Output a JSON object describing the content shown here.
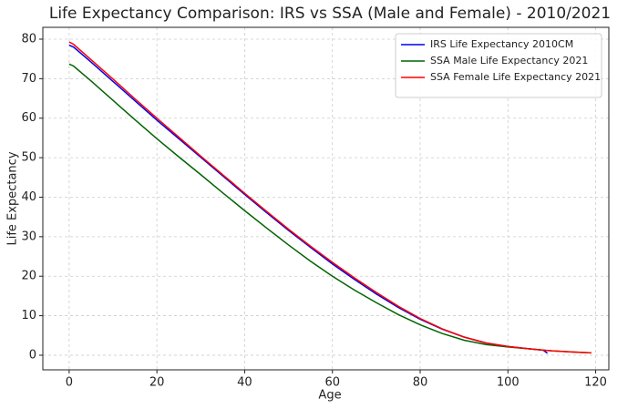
{
  "chart_data": {
    "type": "line",
    "title": "Life Expectancy Comparison: IRS vs SSA (Male and Female) - 2010/2021",
    "x_label": "Age",
    "y_label": "Life Expectancy",
    "x": [
      0,
      1,
      5,
      10,
      15,
      20,
      25,
      30,
      35,
      40,
      45,
      50,
      55,
      60,
      65,
      70,
      75,
      80,
      85,
      90,
      95,
      100,
      105,
      108,
      109,
      110,
      115,
      119
    ],
    "series": [
      {
        "name": "IRS Life Expectancy 2010CM",
        "color": "#0000ee",
        "values": [
          78.5,
          78.0,
          74.2,
          69.3,
          64.4,
          59.5,
          54.8,
          50.1,
          45.4,
          40.7,
          36.1,
          31.6,
          27.3,
          23.1,
          19.2,
          15.5,
          12.1,
          9.1,
          6.6,
          4.6,
          3.1,
          2.2,
          1.6,
          1.3,
          0.5,
          null,
          null,
          null
        ]
      },
      {
        "name": "SSA Male Life Expectancy 2021",
        "color": "#006400",
        "values": [
          73.7,
          73.2,
          69.4,
          64.5,
          59.6,
          54.8,
          50.2,
          45.7,
          41.1,
          36.6,
          32.2,
          27.9,
          23.8,
          20.0,
          16.5,
          13.3,
          10.3,
          7.7,
          5.5,
          3.8,
          2.7,
          2.1,
          1.6,
          1.3,
          1.2,
          1.1,
          0.8,
          0.6
        ]
      },
      {
        "name": "SSA Female Life Expectancy 2021",
        "color": "#ff0000",
        "values": [
          79.3,
          78.7,
          74.8,
          69.9,
          64.9,
          60.0,
          55.2,
          50.4,
          45.7,
          41.0,
          36.4,
          31.9,
          27.6,
          23.5,
          19.6,
          15.9,
          12.4,
          9.3,
          6.7,
          4.6,
          3.1,
          2.2,
          1.6,
          1.3,
          1.2,
          1.1,
          0.8,
          0.6
        ]
      }
    ],
    "xlim": [
      -6,
      123
    ],
    "ylim": [
      -3.7,
      83
    ],
    "xticks": [
      0,
      20,
      40,
      60,
      80,
      100,
      120
    ],
    "yticks": [
      0,
      10,
      20,
      30,
      40,
      50,
      60,
      70,
      80
    ],
    "grid": true,
    "legend": "upper right"
  }
}
